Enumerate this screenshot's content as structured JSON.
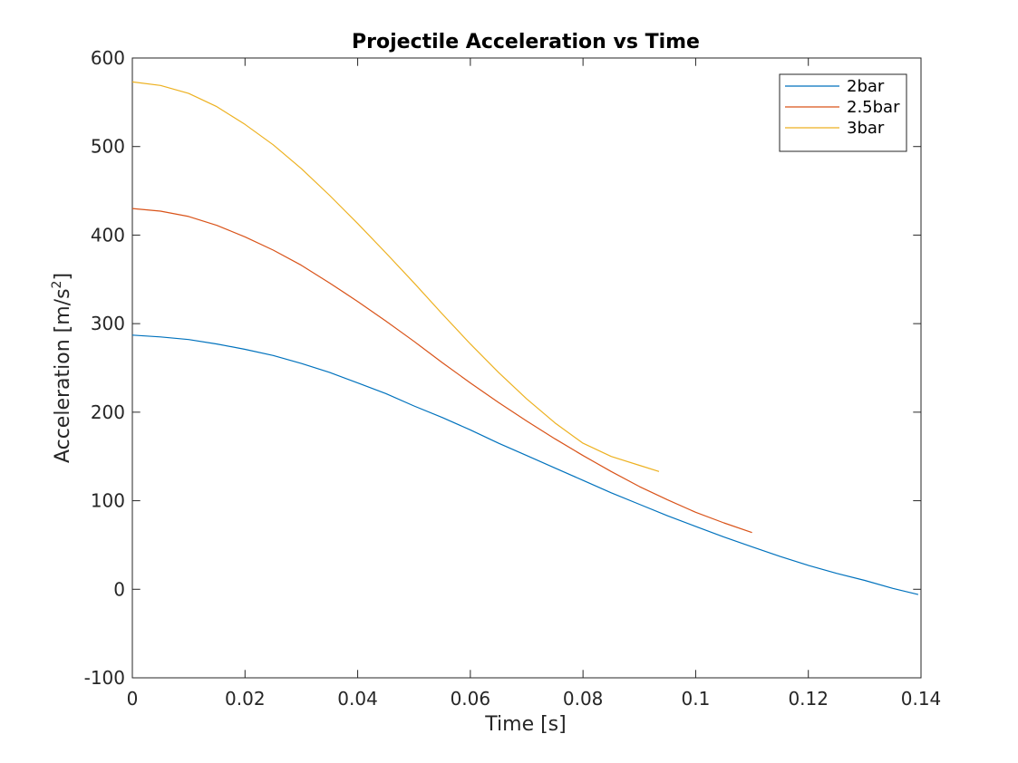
{
  "chart_data": {
    "type": "line",
    "title": "Projectile Acceleration vs Time",
    "xlabel": "Time [s]",
    "ylabel": {
      "base": "Acceleration [m/s",
      "sup": "2",
      "close": "]"
    },
    "xlim": [
      0,
      0.14
    ],
    "ylim": [
      -100,
      600
    ],
    "xticks": [
      0,
      0.02,
      0.04,
      0.06,
      0.08,
      0.1,
      0.12,
      0.14
    ],
    "xtick_labels": [
      "0",
      "0.02",
      "0.04",
      "0.06",
      "0.08",
      "0.1",
      "0.12",
      "0.14"
    ],
    "yticks": [
      -100,
      0,
      100,
      200,
      300,
      400,
      500,
      600
    ],
    "ytick_labels": [
      "-100",
      "0",
      "100",
      "200",
      "300",
      "400",
      "500",
      "600"
    ],
    "grid": false,
    "legend_position": "top-right",
    "series": [
      {
        "name": "2bar",
        "color": "#0072BD",
        "x": [
          0,
          0.005,
          0.01,
          0.015,
          0.02,
          0.025,
          0.03,
          0.035,
          0.04,
          0.045,
          0.05,
          0.055,
          0.06,
          0.065,
          0.07,
          0.075,
          0.08,
          0.085,
          0.09,
          0.095,
          0.1,
          0.105,
          0.11,
          0.115,
          0.12,
          0.125,
          0.13,
          0.135,
          0.1395
        ],
        "y": [
          287,
          285,
          282,
          277,
          271,
          264,
          255,
          245,
          233,
          221,
          207,
          194,
          180,
          165,
          151,
          137,
          123,
          109,
          96,
          83,
          71,
          59,
          48,
          37,
          27,
          18,
          10,
          1,
          -6
        ]
      },
      {
        "name": "2.5bar",
        "color": "#D95319",
        "x": [
          0,
          0.005,
          0.01,
          0.015,
          0.02,
          0.025,
          0.03,
          0.035,
          0.04,
          0.045,
          0.05,
          0.055,
          0.06,
          0.065,
          0.07,
          0.075,
          0.08,
          0.085,
          0.09,
          0.095,
          0.1,
          0.105,
          0.11
        ],
        "y": [
          430,
          427,
          421,
          411,
          398,
          383,
          366,
          346,
          325,
          303,
          280,
          256,
          233,
          211,
          190,
          170,
          151,
          133,
          116,
          101,
          87,
          75,
          64
        ]
      },
      {
        "name": "3bar",
        "color": "#EDB120",
        "x": [
          0,
          0.005,
          0.01,
          0.015,
          0.02,
          0.025,
          0.03,
          0.035,
          0.04,
          0.045,
          0.05,
          0.055,
          0.06,
          0.065,
          0.07,
          0.075,
          0.08,
          0.085,
          0.09,
          0.0935
        ],
        "y": [
          573,
          569,
          560,
          545,
          525,
          502,
          475,
          445,
          413,
          380,
          346,
          311,
          277,
          245,
          215,
          188,
          165,
          150,
          140,
          133
        ]
      }
    ]
  }
}
